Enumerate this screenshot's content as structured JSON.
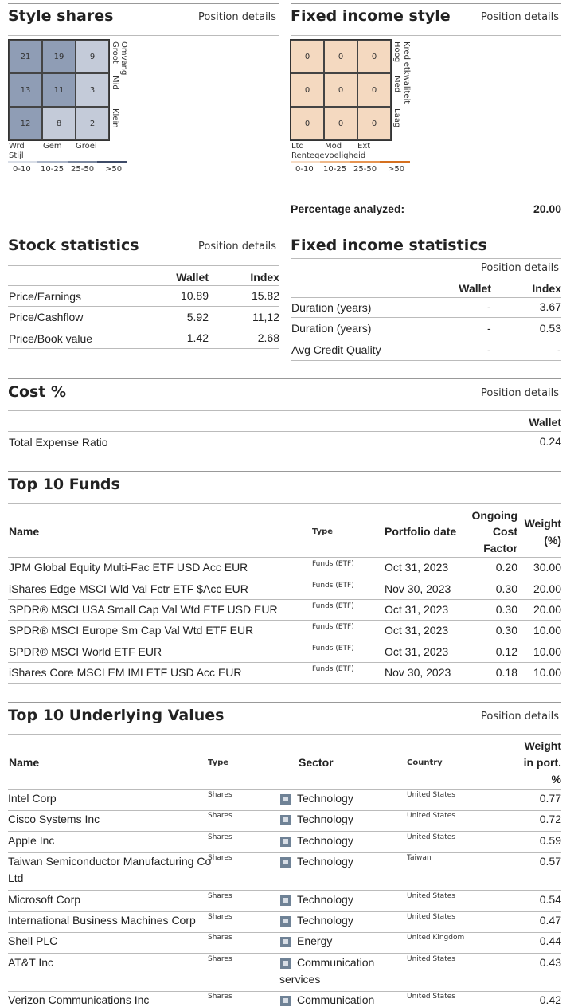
{
  "common": {
    "position_details": "Position details"
  },
  "style_shares": {
    "title": "Style shares",
    "cells": [
      "21",
      "19",
      "9",
      "13",
      "11",
      "3",
      "12",
      "8",
      "2"
    ],
    "cell_colors": [
      "#8f9db5",
      "#8f9db5",
      "#c4cbd9",
      "#8f9db5",
      "#8f9db5",
      "#c4cbd9",
      "#8f9db5",
      "#c4cbd9",
      "#c4cbd9"
    ],
    "side_title": "Omvang",
    "side_labels": [
      "Groot",
      "Mid",
      "Klein"
    ],
    "bottom_labels": [
      "Wrd",
      "Gem",
      "Groei"
    ],
    "axis_title": "Stijl",
    "legend": [
      "0-10",
      "10-25",
      "25-50",
      ">50"
    ],
    "legend_colors": [
      "#d9dee7",
      "#a9b3c6",
      "#7a879f",
      "#3e4b68"
    ]
  },
  "fixed_income_style": {
    "title": "Fixed income style",
    "cells": [
      "0",
      "0",
      "0",
      "0",
      "0",
      "0",
      "0",
      "0",
      "0"
    ],
    "cell_color": "#f4d9c0",
    "side_title": "Kredietkwaliteit",
    "side_labels": [
      "Hoog",
      "Med",
      "Laag"
    ],
    "bottom_labels": [
      "Ltd",
      "Mod",
      "Ext"
    ],
    "axis_title": "Rentegevoeligheid",
    "legend": [
      "0-10",
      "10-25",
      "25-50",
      ">50"
    ],
    "legend_colors": [
      "#f6dcc5",
      "#efb98a",
      "#e79552",
      "#d5701f"
    ],
    "analyzed_label": "Percentage analyzed:",
    "analyzed_value": "20.00"
  },
  "stock_statistics": {
    "title": "Stock statistics",
    "col_wallet": "Wallet",
    "col_index": "Index",
    "rows": [
      {
        "label": "Price/Earnings",
        "wallet": "10.89",
        "index": "15.82"
      },
      {
        "label": "Price/Cashflow",
        "wallet": "5.92",
        "index": "11,12"
      },
      {
        "label": "Price/Book value",
        "wallet": "1.42",
        "index": "2.68"
      }
    ]
  },
  "fixed_income_statistics": {
    "title": "Fixed income statistics",
    "col_wallet": "Wallet",
    "col_index": "Index",
    "rows": [
      {
        "label": "Duration (years)",
        "wallet": "-",
        "index": "3.67"
      },
      {
        "label": "Duration (years)",
        "wallet": "-",
        "index": "0.53"
      },
      {
        "label": "Avg Credit Quality",
        "wallet": "-",
        "index": "-"
      }
    ]
  },
  "cost": {
    "title": "Cost %",
    "col_wallet": "Wallet",
    "rows": [
      {
        "label": "Total Expense Ratio",
        "wallet": "0.24"
      }
    ]
  },
  "top_funds": {
    "title": "Top 10 Funds",
    "col_name": "Name",
    "col_type": "Type",
    "col_date": "Portfolio date",
    "col_cost": [
      "Ongoing",
      "Cost",
      "Factor"
    ],
    "col_weight": [
      "Weight",
      "(%)"
    ],
    "rows": [
      {
        "name": "JPM Global Equity Multi-Fac ETF USD Acc EUR",
        "type": "Funds (ETF)",
        "date": "Oct 31, 2023",
        "cost": "0.20",
        "weight": "30.00"
      },
      {
        "name": "iShares Edge MSCI Wld Val Fctr ETF $Acc EUR",
        "type": "Funds (ETF)",
        "date": "Nov 30, 2023",
        "cost": "0.30",
        "weight": "20.00"
      },
      {
        "name": "SPDR® MSCI USA Small Cap Val Wtd ETF USD EUR",
        "type": "Funds (ETF)",
        "date": "Oct 31, 2023",
        "cost": "0.30",
        "weight": "20.00"
      },
      {
        "name": "SPDR® MSCI Europe Sm Cap Val Wtd ETF EUR",
        "type": "Funds (ETF)",
        "date": "Oct 31, 2023",
        "cost": "0.30",
        "weight": "10.00"
      },
      {
        "name": "SPDR® MSCI World ETF EUR",
        "type": "Funds (ETF)",
        "date": "Oct 31, 2023",
        "cost": "0.12",
        "weight": "10.00"
      },
      {
        "name": "iShares Core MSCI EM IMI ETF USD Acc EUR",
        "type": "Funds (ETF)",
        "date": "Nov 30, 2023",
        "cost": "0.18",
        "weight": "10.00"
      }
    ]
  },
  "top_underlying": {
    "title": "Top 10 Underlying Values",
    "col_name": "Name",
    "col_type": "Type",
    "col_sector": "Sector",
    "col_country": "Country",
    "col_weight": [
      "Weight",
      "in port.",
      "%"
    ],
    "rows": [
      {
        "name": "Intel Corp",
        "type": "Shares",
        "sector": "Technology",
        "country": "United States",
        "weight": "0.77"
      },
      {
        "name": "Cisco Systems Inc",
        "type": "Shares",
        "sector": "Technology",
        "country": "United States",
        "weight": "0.72"
      },
      {
        "name": "Apple Inc",
        "type": "Shares",
        "sector": "Technology",
        "country": "United States",
        "weight": "0.59"
      },
      {
        "name": "Taiwan Semiconductor Manufacturing Co",
        "name2": "Ltd",
        "type": "Shares",
        "sector": "Technology",
        "country": "Taiwan",
        "weight": "0.57"
      },
      {
        "name": "Microsoft Corp",
        "type": "Shares",
        "sector": "Technology",
        "country": "United States",
        "weight": "0.54"
      },
      {
        "name": "International Business Machines Corp",
        "type": "Shares",
        "sector": "Technology",
        "country": "United States",
        "weight": "0.47"
      },
      {
        "name": "Shell PLC",
        "type": "Shares",
        "sector": "Energy",
        "country": "United Kingdom",
        "weight": "0.44"
      },
      {
        "name": "AT&T Inc",
        "type": "Shares",
        "sector": "Communication",
        "sector2": "services",
        "country": "United States",
        "weight": "0.43"
      },
      {
        "name": "Verizon Communications Inc",
        "type": "Shares",
        "sector": "Communication",
        "country": "United States",
        "weight": "0.42"
      }
    ]
  }
}
